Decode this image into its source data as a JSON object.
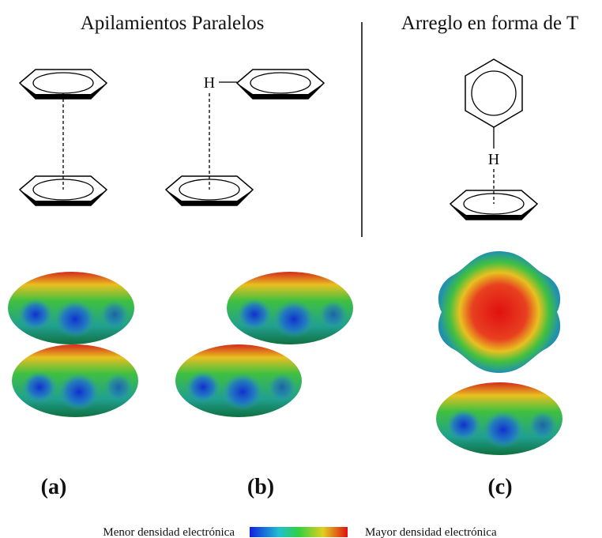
{
  "sections": [
    {
      "title": "Apilamientos Paralelos"
    },
    {
      "title": "Arreglo en forma de T"
    }
  ],
  "atoms": {
    "b": "H",
    "c": "H"
  },
  "panels": [
    "(a)",
    "(b)",
    "(c)"
  ],
  "legend": {
    "min": "Menor densidad electrónica",
    "max": "Mayor densidad electrónica"
  }
}
